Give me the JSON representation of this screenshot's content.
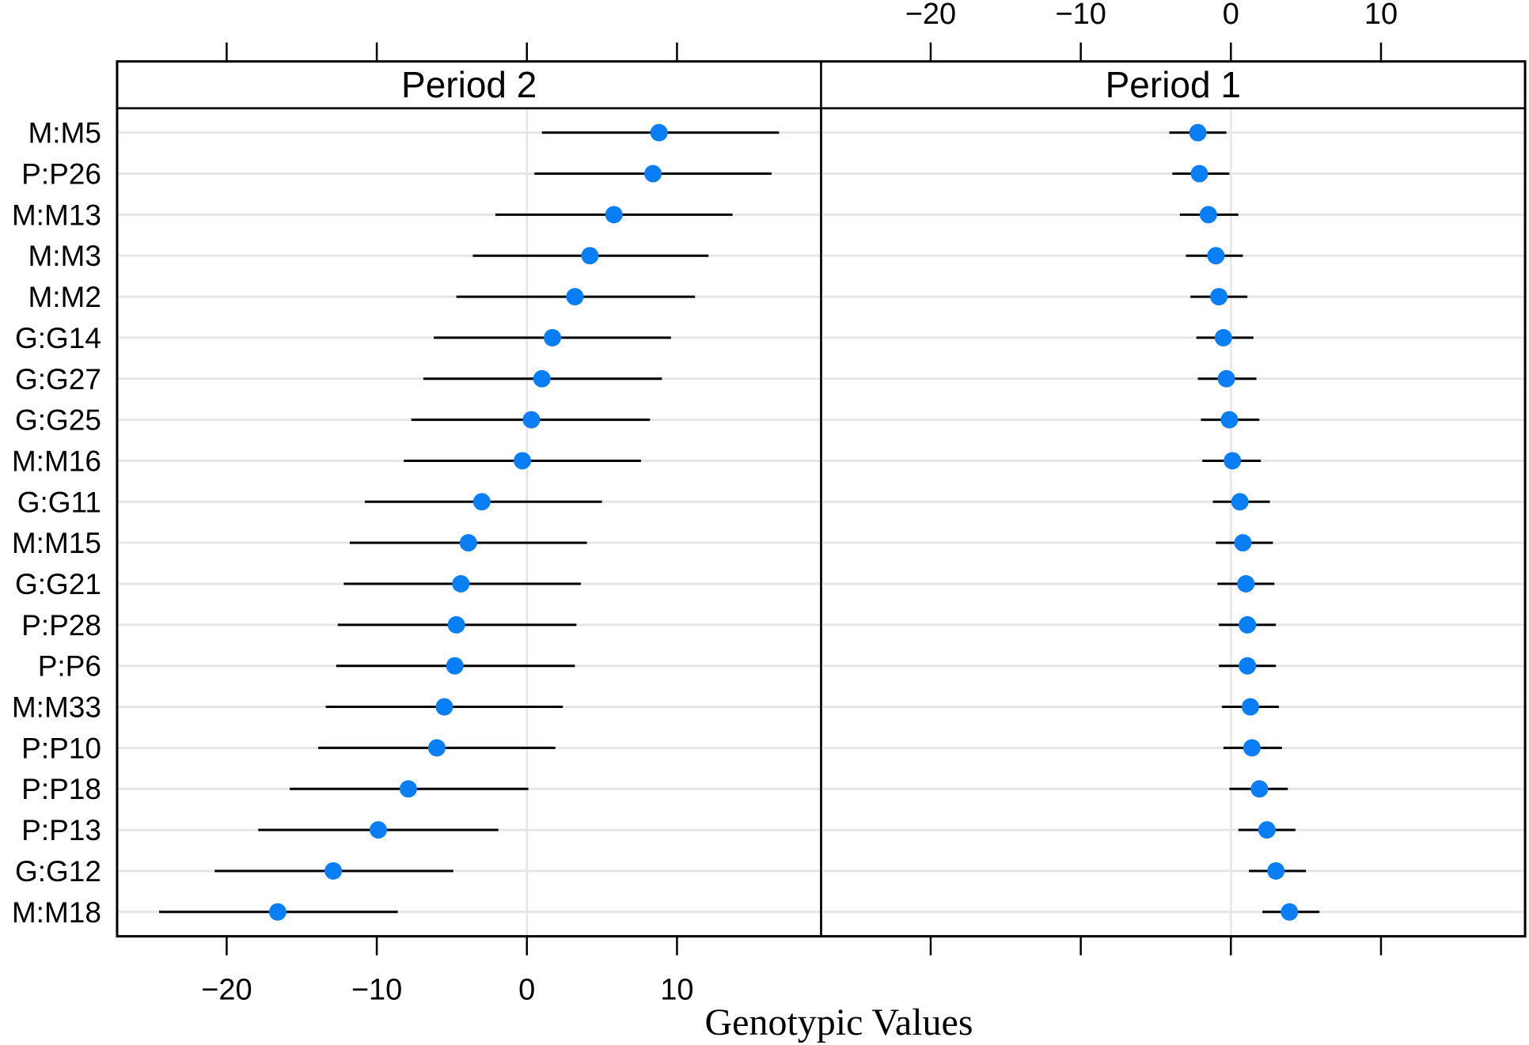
{
  "chart_data": {
    "type": "scatter",
    "subtype": "dot-plot-with-intervals",
    "xlabel": "Genotypic Values",
    "ylabel": "",
    "xlim": [
      -27.3,
      19.6
    ],
    "xticks": [
      -20,
      -10,
      0,
      10
    ],
    "xtick_labels": [
      "−20",
      "−10",
      "0",
      "10"
    ],
    "grid": true,
    "point_color": "#0a7ff5",
    "categories": [
      "M:M5",
      "P:P26",
      "M:M13",
      "M:M3",
      "M:M2",
      "G:G14",
      "G:G27",
      "G:G25",
      "M:M16",
      "G:G11",
      "M:M15",
      "G:G21",
      "P:P28",
      "P:P6",
      "M:M33",
      "P:P10",
      "P:P18",
      "P:P13",
      "G:G12",
      "M:M18"
    ],
    "panels": [
      {
        "title": "Period 2",
        "estimate": [
          8.8,
          8.4,
          5.8,
          4.2,
          3.2,
          1.7,
          1.0,
          0.3,
          -0.3,
          -3.0,
          -3.9,
          -4.4,
          -4.7,
          -4.8,
          -5.5,
          -6.0,
          -7.9,
          -9.9,
          -12.9,
          -16.6
        ],
        "lower": [
          1.0,
          0.5,
          -2.1,
          -3.6,
          -4.7,
          -6.2,
          -6.9,
          -7.7,
          -8.2,
          -10.8,
          -11.8,
          -12.2,
          -12.6,
          -12.7,
          -13.4,
          -13.9,
          -15.8,
          -17.9,
          -20.8,
          -24.5
        ],
        "upper": [
          16.8,
          16.3,
          13.7,
          12.1,
          11.2,
          9.6,
          9.0,
          8.2,
          7.6,
          5.0,
          4.0,
          3.6,
          3.3,
          3.2,
          2.4,
          1.9,
          0.1,
          -1.9,
          -4.9,
          -8.6
        ]
      },
      {
        "title": "Period 1",
        "estimate": [
          -2.2,
          -2.1,
          -1.5,
          -1.0,
          -0.8,
          -0.5,
          -0.3,
          -0.1,
          0.1,
          0.6,
          0.8,
          1.0,
          1.1,
          1.1,
          1.3,
          1.4,
          1.9,
          2.4,
          3.0,
          3.9
        ],
        "lower": [
          -4.1,
          -3.9,
          -3.4,
          -3.0,
          -2.7,
          -2.3,
          -2.2,
          -2.0,
          -1.9,
          -1.2,
          -1.0,
          -0.9,
          -0.8,
          -0.8,
          -0.6,
          -0.5,
          -0.1,
          0.5,
          1.2,
          2.1
        ],
        "upper": [
          -0.3,
          -0.1,
          0.5,
          0.8,
          1.1,
          1.5,
          1.7,
          1.9,
          2.0,
          2.6,
          2.8,
          2.9,
          3.0,
          3.0,
          3.2,
          3.4,
          3.8,
          4.3,
          5.0,
          5.9
        ]
      }
    ]
  }
}
